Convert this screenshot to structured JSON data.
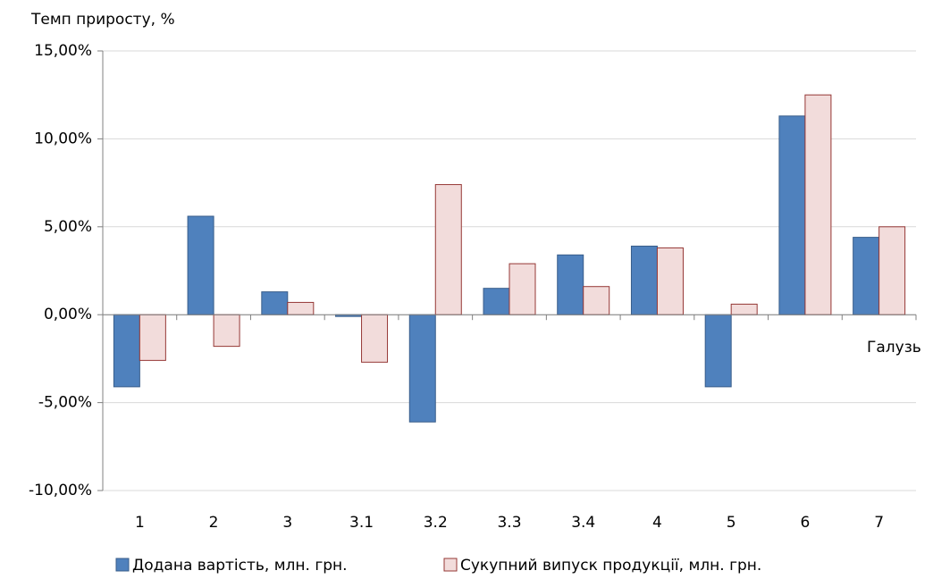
{
  "chart_data": {
    "type": "bar",
    "y_axis_label": "Темп приросту, %",
    "x_axis_label": "Галузь",
    "categories": [
      "1",
      "2",
      "3",
      "3.1",
      "3.2",
      "3.3",
      "3.4",
      "4",
      "5",
      "6",
      "7"
    ],
    "series": [
      {
        "name": "Додана вартість, млн. грн.",
        "color": "#4f81bd",
        "edge": "#385d8a",
        "values": [
          -4.1,
          5.6,
          1.3,
          -0.1,
          -6.1,
          1.5,
          3.4,
          3.9,
          -4.1,
          11.3,
          4.4
        ]
      },
      {
        "name": "Сукупний випуск продукції, млн. грн.",
        "color": "#f2dcdb",
        "edge": "#953735",
        "values": [
          -2.6,
          -1.8,
          0.7,
          -2.7,
          7.4,
          2.9,
          1.6,
          3.8,
          0.6,
          12.5,
          5.0
        ]
      }
    ],
    "ylim": [
      -10,
      15
    ],
    "yticks": [
      {
        "value": -10,
        "label": "-10,00%"
      },
      {
        "value": -5,
        "label": "-5,00%"
      },
      {
        "value": 0,
        "label": "0,00%"
      },
      {
        "value": 5,
        "label": "5,00%"
      },
      {
        "value": 10,
        "label": "10,00%"
      },
      {
        "value": 15,
        "label": "15,00%"
      }
    ],
    "grid": true,
    "legend": "bottom"
  }
}
